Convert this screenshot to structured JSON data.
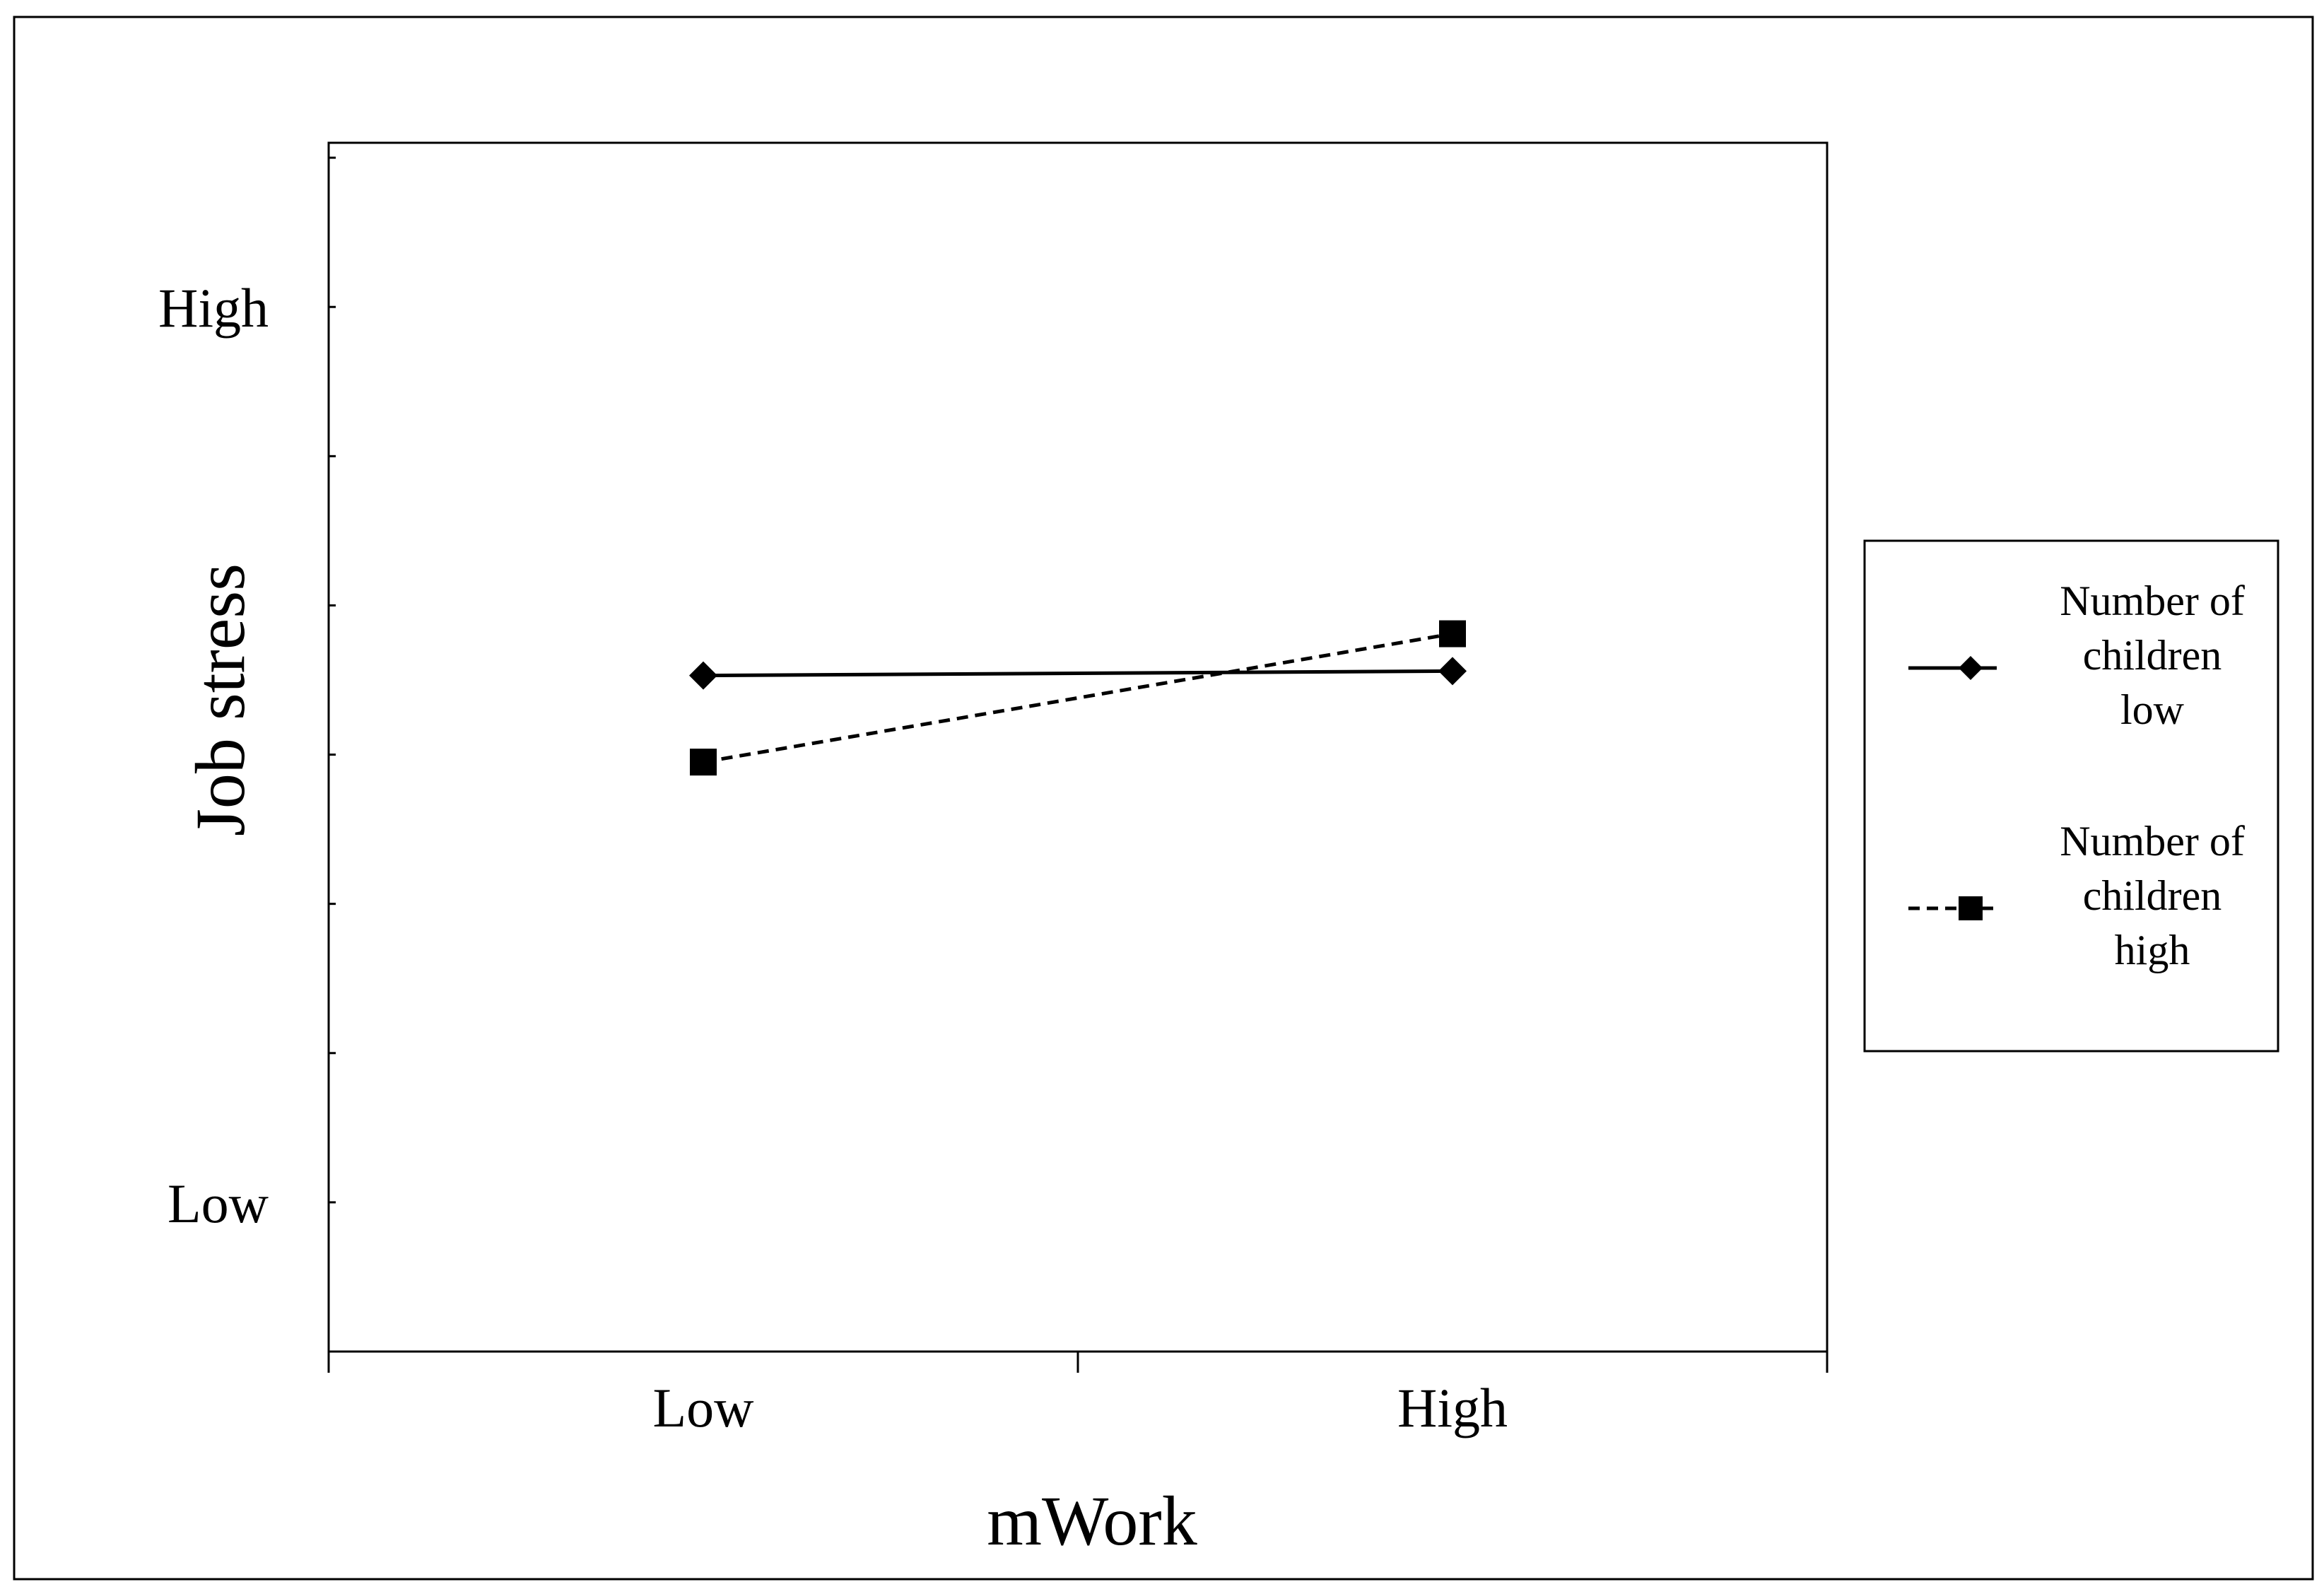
{
  "chart_data": {
    "type": "line",
    "title": "",
    "xlabel": "mWork",
    "ylabel": "Job stress",
    "categories": [
      "Low",
      "High"
    ],
    "y_tick_labels": [
      {
        "value": 1,
        "label": "Low"
      },
      {
        "value": 7,
        "label": "High"
      }
    ],
    "ylim": [
      0,
      8.1
    ],
    "grid": false,
    "legend_position": "right",
    "series": [
      {
        "name_lines": [
          "Number of",
          "children",
          "low"
        ],
        "values": [
          4.53,
          4.56
        ],
        "line_style": "solid",
        "marker": "diamond",
        "color": "#000000"
      },
      {
        "name_lines": [
          "Number of",
          "children",
          "high"
        ],
        "values": [
          3.95,
          4.81
        ],
        "line_style": "dashed",
        "marker": "square",
        "color": "#000000"
      }
    ]
  }
}
